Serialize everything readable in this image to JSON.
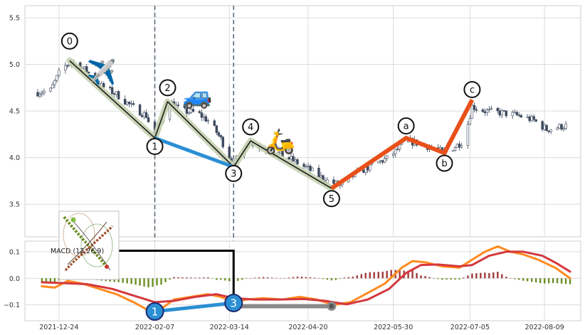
{
  "chart_data": [
    {
      "type": "candlestick",
      "panel": "price",
      "x_tick_labels": [
        "2021-12-24",
        "2022-02-07",
        "2022-03-14",
        "2022-04-20",
        "2022-05-30",
        "2022-07-05",
        "2022-08-09"
      ],
      "x_tick_dates": [
        "2021-12-24",
        "2022-02-07",
        "2022-03-14",
        "2022-04-20",
        "2022-05-30",
        "2022-07-05",
        "2022-08-09"
      ],
      "xlim": [
        "2021-12-08",
        "2022-08-26"
      ],
      "y_ticks": [
        3.5,
        4.0,
        4.5,
        5.0,
        5.5
      ],
      "y_tick_labels": [
        "3.5",
        "4.0",
        "4.5",
        "5.0",
        "5.5"
      ],
      "ylim": [
        3.15,
        5.63
      ],
      "grid": true,
      "candles": {
        "up_color": "#ffffff",
        "down_color": "#3d4a5e",
        "edge_color": "#3d4a5e"
      },
      "candle_path": [
        [
          "2021-12-14",
          4.7
        ],
        [
          "2021-12-20",
          4.72
        ],
        [
          "2021-12-25",
          4.95
        ],
        [
          "2021-12-30",
          5.03
        ],
        [
          "2022-01-06",
          4.93
        ],
        [
          "2022-01-12",
          4.78
        ],
        [
          "2022-01-20",
          4.68
        ],
        [
          "2022-01-27",
          4.55
        ],
        [
          "2022-02-03",
          4.45
        ],
        [
          "2022-02-07",
          4.22
        ],
        [
          "2022-02-10",
          4.38
        ],
        [
          "2022-02-14",
          4.6
        ],
        [
          "2022-02-20",
          4.5
        ],
        [
          "2022-02-27",
          4.48
        ],
        [
          "2022-03-05",
          4.38
        ],
        [
          "2022-03-10",
          4.2
        ],
        [
          "2022-03-16",
          3.92
        ],
        [
          "2022-03-19",
          4.02
        ],
        [
          "2022-03-23",
          4.18
        ],
        [
          "2022-03-28",
          4.12
        ],
        [
          "2022-04-05",
          4.05
        ],
        [
          "2022-04-12",
          3.98
        ],
        [
          "2022-04-20",
          3.88
        ],
        [
          "2022-04-28",
          3.76
        ],
        [
          "2022-05-05",
          3.7
        ],
        [
          "2022-05-12",
          3.82
        ],
        [
          "2022-05-20",
          3.92
        ],
        [
          "2022-05-28",
          4.0
        ],
        [
          "2022-06-05",
          4.18
        ],
        [
          "2022-06-12",
          4.15
        ],
        [
          "2022-06-20",
          4.08
        ],
        [
          "2022-06-23",
          4.05
        ],
        [
          "2022-06-28",
          4.12
        ],
        [
          "2022-07-02",
          4.18
        ],
        [
          "2022-07-06",
          4.55
        ],
        [
          "2022-07-12",
          4.5
        ],
        [
          "2022-07-20",
          4.48
        ],
        [
          "2022-07-28",
          4.45
        ],
        [
          "2022-08-04",
          4.4
        ],
        [
          "2022-08-10",
          4.3
        ],
        [
          "2022-08-16",
          4.33
        ],
        [
          "2022-08-21",
          4.35
        ]
      ],
      "wave_points": [
        {
          "label": "0",
          "date": "2021-12-29",
          "value": 5.04,
          "label_value": 5.25
        },
        {
          "label": "1",
          "date": "2022-02-07",
          "value": 4.21,
          "label_value": 4.12
        },
        {
          "label": "2",
          "date": "2022-02-13",
          "value": 4.6,
          "label_value": 4.75
        },
        {
          "label": "3",
          "date": "2022-03-16",
          "value": 3.9,
          "label_value": 3.83
        },
        {
          "label": "4",
          "date": "2022-03-24",
          "value": 4.18,
          "label_value": 4.33
        },
        {
          "label": "5",
          "date": "2022-05-01",
          "value": 3.67,
          "label_value": 3.56
        },
        {
          "label": "a",
          "date": "2022-06-05",
          "value": 4.21,
          "label_value": 4.34
        },
        {
          "label": "b",
          "date": "2022-06-23",
          "value": 4.05,
          "label_value": 3.94
        },
        {
          "label": "c",
          "date": "2022-07-06",
          "value": 4.62,
          "label_value": 4.73
        }
      ],
      "impulse_line": {
        "color": "#1a1a1a",
        "halo_color": "#c7d1b0"
      },
      "correction_line": {
        "color": "#e8501a"
      },
      "divergence_line": {
        "color": "#2b8fd4",
        "from": "1",
        "to": "3"
      },
      "vertical_lines": [
        "2022-02-07",
        "2022-03-16"
      ],
      "vertical_line_color": "#5b6b7a",
      "icons": [
        {
          "name": "airplane-icon",
          "glyph": "✈️",
          "date": "2022-01-13",
          "value": 4.92
        },
        {
          "name": "car-icon",
          "glyph": "🚙",
          "date": "2022-02-27",
          "value": 4.67
        },
        {
          "name": "scooter-icon",
          "glyph": "🛵",
          "date": "2022-04-07",
          "value": 4.18
        }
      ]
    },
    {
      "type": "line+bar",
      "panel": "macd",
      "legend_label": "MACD (12,26,9)",
      "y_ticks": [
        -0.1,
        0.0,
        0.1
      ],
      "y_tick_labels": [
        "−0.1",
        "0.0",
        "0.1"
      ],
      "ylim": [
        -0.16,
        0.14
      ],
      "grid": true,
      "series": [
        {
          "key": "macd",
          "color": "#ff8a1f",
          "points": [
            [
              "2021-12-16",
              -0.03
            ],
            [
              "2021-12-22",
              -0.035
            ],
            [
              "2021-12-28",
              -0.01
            ],
            [
              "2022-01-04",
              -0.02
            ],
            [
              "2022-01-12",
              -0.04
            ],
            [
              "2022-01-20",
              -0.06
            ],
            [
              "2022-01-28",
              -0.09
            ],
            [
              "2022-02-05",
              -0.125
            ],
            [
              "2022-02-10",
              -0.115
            ],
            [
              "2022-02-16",
              -0.08
            ],
            [
              "2022-02-24",
              -0.07
            ],
            [
              "2022-03-04",
              -0.06
            ],
            [
              "2022-03-10",
              -0.07
            ],
            [
              "2022-03-16",
              -0.09
            ],
            [
              "2022-03-22",
              -0.08
            ],
            [
              "2022-03-30",
              -0.075
            ],
            [
              "2022-04-08",
              -0.08
            ],
            [
              "2022-04-16",
              -0.07
            ],
            [
              "2022-04-24",
              -0.08
            ],
            [
              "2022-05-02",
              -0.1
            ],
            [
              "2022-05-10",
              -0.09
            ],
            [
              "2022-05-18",
              -0.055
            ],
            [
              "2022-05-26",
              -0.02
            ],
            [
              "2022-06-03",
              0.04
            ],
            [
              "2022-06-08",
              0.065
            ],
            [
              "2022-06-14",
              0.06
            ],
            [
              "2022-06-22",
              0.045
            ],
            [
              "2022-06-30",
              0.04
            ],
            [
              "2022-07-06",
              0.07
            ],
            [
              "2022-07-12",
              0.1
            ],
            [
              "2022-07-18",
              0.12
            ],
            [
              "2022-07-24",
              0.1
            ],
            [
              "2022-07-30",
              0.09
            ],
            [
              "2022-08-06",
              0.07
            ],
            [
              "2022-08-14",
              0.04
            ],
            [
              "2022-08-21",
              0.0
            ]
          ]
        },
        {
          "key": "signal",
          "color": "#d4373c",
          "points": [
            [
              "2021-12-16",
              -0.015
            ],
            [
              "2021-12-26",
              -0.018
            ],
            [
              "2022-01-06",
              -0.022
            ],
            [
              "2022-01-18",
              -0.04
            ],
            [
              "2022-01-28",
              -0.065
            ],
            [
              "2022-02-07",
              -0.09
            ],
            [
              "2022-02-16",
              -0.085
            ],
            [
              "2022-02-26",
              -0.07
            ],
            [
              "2022-03-08",
              -0.06
            ],
            [
              "2022-03-16",
              -0.075
            ],
            [
              "2022-03-26",
              -0.08
            ],
            [
              "2022-04-06",
              -0.08
            ],
            [
              "2022-04-18",
              -0.078
            ],
            [
              "2022-04-28",
              -0.085
            ],
            [
              "2022-05-08",
              -0.098
            ],
            [
              "2022-05-18",
              -0.08
            ],
            [
              "2022-05-28",
              -0.04
            ],
            [
              "2022-06-05",
              0.02
            ],
            [
              "2022-06-12",
              0.05
            ],
            [
              "2022-06-20",
              0.052
            ],
            [
              "2022-06-30",
              0.045
            ],
            [
              "2022-07-06",
              0.05
            ],
            [
              "2022-07-14",
              0.085
            ],
            [
              "2022-07-22",
              0.1
            ],
            [
              "2022-07-30",
              0.1
            ],
            [
              "2022-08-08",
              0.085
            ],
            [
              "2022-08-15",
              0.055
            ],
            [
              "2022-08-21",
              0.025
            ]
          ]
        }
      ],
      "histogram": {
        "up_color": "#a03b3b",
        "down_color": "#6b8e23",
        "spacing_days": 2
      },
      "waves": [
        {
          "label": "1",
          "date": "2022-02-07",
          "value": -0.125
        },
        {
          "label": "3",
          "date": "2022-03-16",
          "value": -0.093
        }
      ],
      "divergence_line": {
        "color": "#2b8fd4"
      },
      "marker_fill": "#2b8fd4",
      "marker_edge": "#1f2a6e",
      "connector": {
        "color": "#000000",
        "from_date": "2022-01-19",
        "from_value": 0.104,
        "to_date": "2022-03-16",
        "to_value": -0.09
      },
      "end_segment": {
        "color": "#8a8a8a",
        "from_date": "2022-03-16",
        "to_date": "2022-05-01",
        "value": -0.105
      }
    }
  ]
}
